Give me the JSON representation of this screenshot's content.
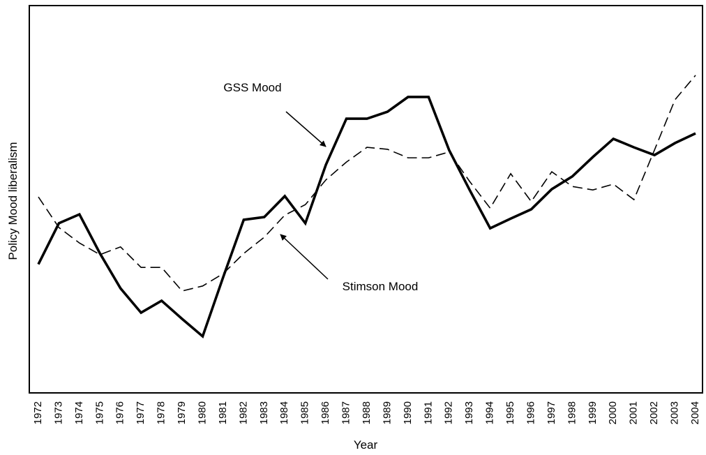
{
  "chart_data": {
    "type": "line",
    "x_label": "Year",
    "y_label": "Policy Mood liberalism",
    "categories": [
      "1972",
      "1973",
      "1974",
      "1975",
      "1976",
      "1977",
      "1978",
      "1979",
      "1980",
      "1981",
      "1982",
      "1983",
      "1984",
      "1985",
      "1986",
      "1987",
      "1988",
      "1989",
      "1990",
      "1991",
      "1992",
      "1993",
      "1994",
      "1995",
      "1996",
      "1997",
      "1998",
      "1999",
      "2000",
      "2001",
      "2002",
      "2003",
      "2004"
    ],
    "ylim": [
      0,
      100
    ],
    "series": [
      {
        "name": "GSS Mood",
        "color": "#000000",
        "dash": false,
        "values": [
          33.2,
          43.8,
          46.1,
          36.0,
          27.0,
          20.7,
          23.8,
          19.1,
          14.6,
          29.9,
          44.7,
          45.4,
          50.8,
          43.8,
          58.9,
          70.8,
          70.8,
          72.6,
          76.4,
          76.4,
          62.7,
          52.4,
          42.5,
          45.0,
          47.4,
          52.6,
          55.9,
          60.9,
          65.6,
          63.4,
          61.4,
          64.5,
          67.0
        ]
      },
      {
        "name": "Stimson Mood",
        "color": "#000000",
        "dash": true,
        "values": [
          50.6,
          42.7,
          38.7,
          35.7,
          37.7,
          32.4,
          32.4,
          26.3,
          27.6,
          30.8,
          36.0,
          40.2,
          45.9,
          48.6,
          55.0,
          59.6,
          63.4,
          62.9,
          60.7,
          60.7,
          62.2,
          54.6,
          47.7,
          56.6,
          49.4,
          57.1,
          53.3,
          52.4,
          53.9,
          49.9,
          62.7,
          75.7,
          82.0
        ]
      }
    ]
  }
}
